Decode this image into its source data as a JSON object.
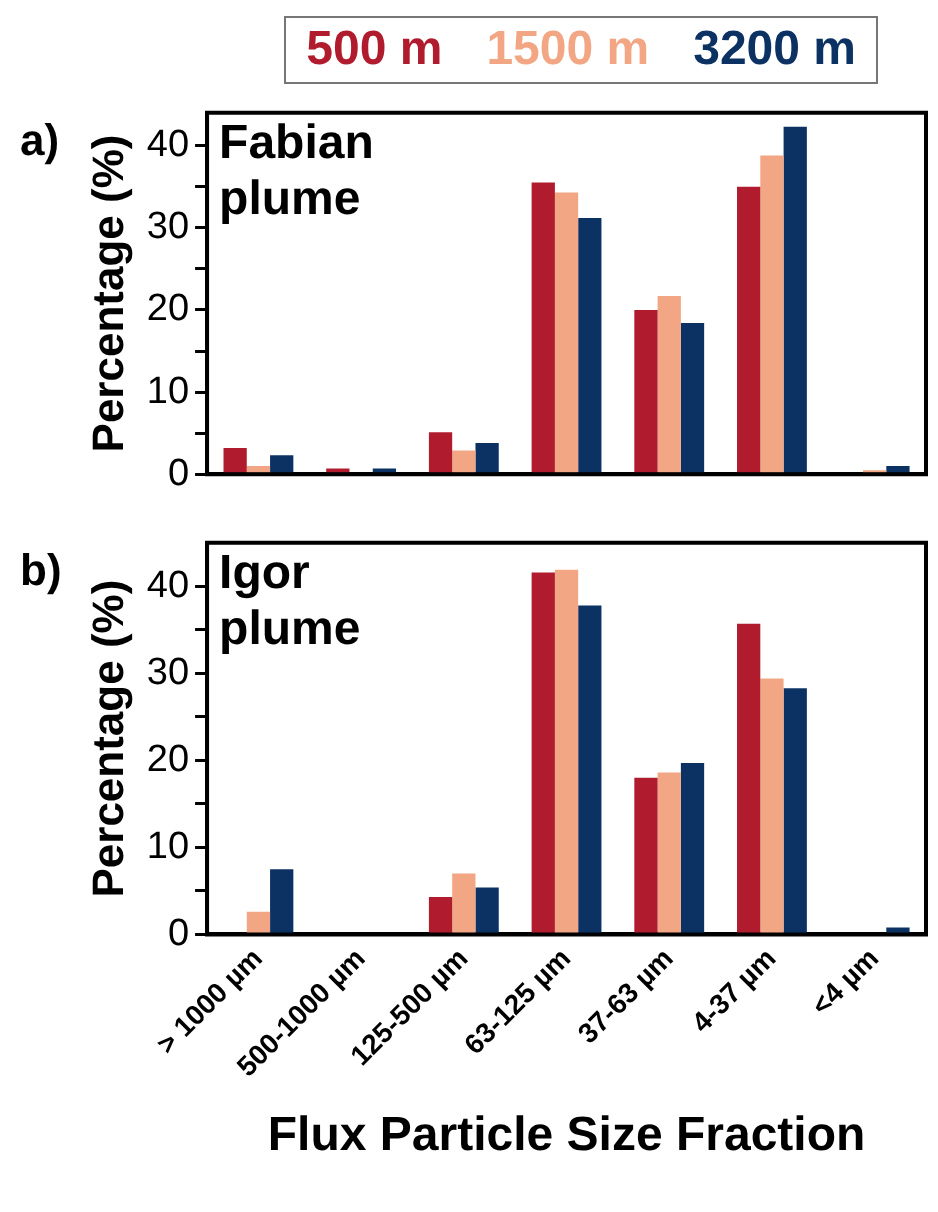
{
  "chart_data": [
    {
      "type": "bar",
      "title": "a)",
      "ylabel": "Percentage (%)",
      "annotations": [
        "Fabian plume"
      ],
      "categories": [
        null,
        null,
        null,
        null,
        null,
        null,
        null
      ],
      "series": [
        {
          "name": "500 m",
          "color": "#b01c2e",
          "values": [
            3.2,
            0.7,
            5.1,
            35.5,
            20.0,
            35.0,
            0
          ]
        },
        {
          "name": "1500 m",
          "color": "#f2a683",
          "values": [
            1.0,
            null,
            2.9,
            34.3,
            21.7,
            38.8,
            0.5
          ]
        },
        {
          "name": "3200 m",
          "color": "#0c3264",
          "values": [
            2.3,
            0.7,
            3.8,
            31.2,
            18.4,
            42.3,
            1.0
          ]
        }
      ],
      "ylim": [
        0,
        44
      ],
      "yticks": [
        0,
        {
          "value": 5,
          "label": null
        },
        10,
        {
          "value": 15,
          "label": null
        },
        20,
        {
          "value": 25,
          "label": null
        },
        30,
        {
          "value": 35,
          "label": null
        },
        40
      ],
      "grid": false,
      "legend": "top"
    },
    {
      "type": "bar",
      "title": "b)",
      "ylabel": "Percentage (%)",
      "xlabel": "Flux Particle Size Fraction",
      "annotations": [
        "Igor plume"
      ],
      "categories": [
        "> 1000 µm",
        "500-1000 µm",
        "125-500 µm",
        "63-125 µm",
        "37-63 µm",
        "4-37 µm",
        "<4 µm"
      ],
      "series": [
        {
          "color": "#b01c2e",
          "values": [
            0,
            0,
            4.3,
            41.6,
            18.0,
            35.7,
            0
          ]
        },
        {
          "color": "#f2a683",
          "values": [
            2.6,
            0,
            7.0,
            41.9,
            18.6,
            29.4,
            0
          ]
        },
        {
          "color": "#0c3264",
          "values": [
            7.5,
            0,
            5.4,
            37.8,
            19.7,
            28.3,
            0.8
          ]
        }
      ],
      "ylim": [
        0,
        45
      ],
      "yticks": [
        0,
        {
          "value": 5,
          "label": null
        },
        10,
        {
          "value": 15,
          "label": null
        },
        20,
        {
          "value": 25,
          "label": null
        },
        30,
        {
          "value": 35,
          "label": null
        },
        40
      ],
      "grid": false,
      "legend": false
    }
  ]
}
